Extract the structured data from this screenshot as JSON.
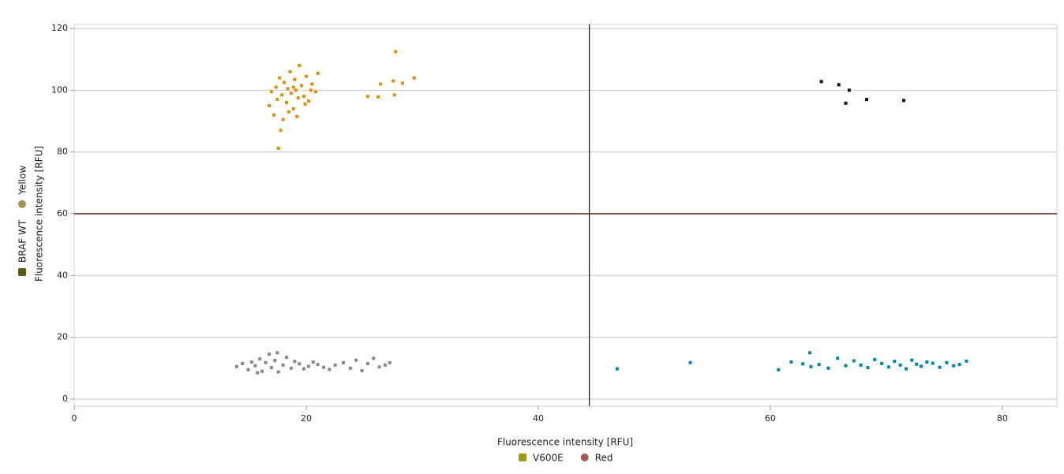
{
  "chart_data": {
    "type": "scatter",
    "x_label": "Fluorescence intensity [RFU]",
    "y_label": "Fluorescence intensity [RFU]",
    "xlim": [
      0,
      84.7
    ],
    "ylim": [
      -2.3,
      121.3
    ],
    "xticks": [
      0,
      20,
      40,
      60,
      80
    ],
    "yticks": [
      0,
      20,
      40,
      60,
      80,
      100,
      120
    ],
    "grid": true,
    "thresholds": {
      "x": 44.4,
      "y": 60,
      "x_color": "#111111",
      "y_color": "#5a1f14"
    },
    "x_legend": [
      {
        "label": "V600E",
        "color": "#9c9c14",
        "shape": "square"
      },
      {
        "label": "Red",
        "color": "#a05a5a",
        "shape": "circle"
      }
    ],
    "y_legend": [
      {
        "label": "BRAF WT",
        "color": "#5c5c10",
        "shape": "square"
      },
      {
        "label": "Yellow",
        "color": "#a89058",
        "shape": "circle"
      }
    ],
    "series": [
      {
        "color": "#888888",
        "x": [
          14.0,
          14.5,
          15.0,
          15.3,
          15.6,
          16.0,
          16.2,
          16.5,
          16.8,
          17.0,
          17.3,
          17.6,
          18.0,
          18.3,
          18.7,
          19.0,
          19.4,
          19.8,
          20.2,
          20.6,
          21.0,
          21.5,
          22.0,
          22.5,
          23.2,
          23.8,
          24.3,
          24.8,
          25.3,
          25.8,
          26.3,
          26.8,
          27.2,
          15.8,
          17.5
        ],
        "values": [
          10.5,
          11.5,
          9.5,
          12.0,
          10.8,
          13.0,
          9.0,
          11.8,
          14.5,
          10.2,
          12.5,
          8.8,
          11.0,
          13.5,
          10.0,
          12.2,
          11.4,
          9.8,
          10.6,
          12.0,
          11.2,
          10.3,
          9.6,
          11.0,
          11.8,
          10.0,
          12.6,
          9.2,
          11.5,
          13.2,
          10.4,
          11.0,
          11.8,
          8.5,
          15.0
        ]
      },
      {
        "color": "#e08e0b",
        "x": [
          16.8,
          17.0,
          17.2,
          17.4,
          17.5,
          17.7,
          17.9,
          18.0,
          18.1,
          18.3,
          18.4,
          18.6,
          18.7,
          18.9,
          19.0,
          19.1,
          19.3,
          19.4,
          19.6,
          19.8,
          20.0,
          20.2,
          20.5,
          20.8,
          21.0,
          17.6,
          17.8,
          18.5,
          19.2,
          19.9,
          25.3,
          26.2,
          26.4,
          27.5,
          27.6,
          27.7,
          28.3,
          29.3,
          18.9,
          20.4
        ],
        "values": [
          95.0,
          99.5,
          92.0,
          101.0,
          97.0,
          104.0,
          98.5,
          90.5,
          102.5,
          96.0,
          100.5,
          106.0,
          99.0,
          94.0,
          103.5,
          100.0,
          97.5,
          108.0,
          101.5,
          98.0,
          104.5,
          96.5,
          102.0,
          99.5,
          105.5,
          81.2,
          87.0,
          93.0,
          91.5,
          95.5,
          98.0,
          97.8,
          102.0,
          103.0,
          98.5,
          112.5,
          102.3,
          104.0,
          101.0,
          100.0
        ]
      },
      {
        "color": "#0086a8",
        "x": [
          46.8,
          53.1,
          60.7,
          61.8,
          62.8,
          63.5,
          64.2,
          65.0,
          65.8,
          66.5,
          67.2,
          67.8,
          68.4,
          69.0,
          69.6,
          70.2,
          70.7,
          71.2,
          71.7,
          72.2,
          72.6,
          73.0,
          73.5,
          74.0,
          74.6,
          75.2,
          75.8,
          76.3,
          76.9,
          63.4
        ],
        "values": [
          9.8,
          11.8,
          9.5,
          12.0,
          11.4,
          10.5,
          11.2,
          10.0,
          13.2,
          10.8,
          12.4,
          11.0,
          10.2,
          12.8,
          11.5,
          10.4,
          12.2,
          11.0,
          9.8,
          12.6,
          11.3,
          10.6,
          12.0,
          11.6,
          10.3,
          11.8,
          10.8,
          11.2,
          12.3,
          15.0
        ]
      },
      {
        "color": "#111111",
        "x": [
          64.4,
          65.9,
          66.8,
          66.5,
          68.3,
          71.5
        ],
        "values": [
          102.8,
          101.8,
          100.0,
          95.8,
          97.0,
          96.7
        ]
      }
    ]
  }
}
